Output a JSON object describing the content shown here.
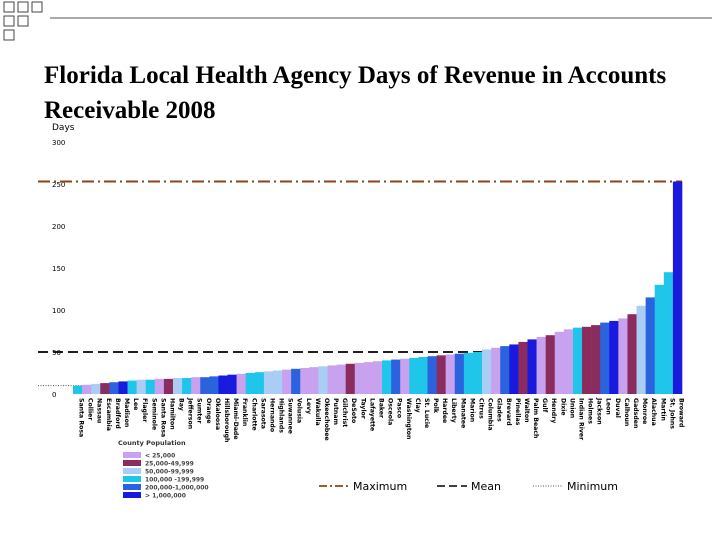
{
  "title": "Florida Local Health Agency Days of Revenue in Accounts Receivable 2008",
  "colors": {
    "lt25k": "#c8a2ef",
    "25k_50k": "#8b2c5e",
    "50k_100k": "#a9cdf5",
    "100k_200k": "#20c6ea",
    "200k_1m": "#2a63dd",
    "gt1m": "#1a1adf",
    "maximum": "#8b4513",
    "mean": "#000000",
    "minimum": "#555555"
  },
  "legend": {
    "title": "County Population",
    "items": [
      {
        "label": "< 25,000",
        "color_key": "lt25k"
      },
      {
        "label": "25,000-49,999",
        "color_key": "25k_50k"
      },
      {
        "label": "50,000-99,999",
        "color_key": "50k_100k"
      },
      {
        "label": "100,000 -199,999",
        "color_key": "100k_200k"
      },
      {
        "label": "200,000-1,000,000",
        "color_key": "200k_1m"
      },
      {
        "label": "> 1,000,000",
        "color_key": "gt1m"
      }
    ],
    "lines": [
      {
        "label": "Maximum",
        "color_key": "maximum"
      },
      {
        "label": "Mean",
        "color_key": "mean"
      },
      {
        "label": "Minimum",
        "color_key": "minimum"
      }
    ]
  },
  "chart_data": {
    "type": "bar",
    "title": "Florida Local Health Agency Days of Revenue in Accounts Receivable 2008",
    "ylabel": "Days",
    "ylim": [
      0,
      300
    ],
    "yticks": [
      0,
      50,
      100,
      150,
      200,
      250,
      300
    ],
    "grid": false,
    "reference_lines": {
      "maximum": 253,
      "mean": 50,
      "minimum": 10
    },
    "categories": [
      "Santa Rosa",
      "Collier",
      "Nassau",
      "Escambia",
      "Bradford",
      "Madison",
      "Lee",
      "Flagler",
      "Seminole",
      "Santa Rosa",
      "Hamilton",
      "Bay",
      "Jefferson",
      "Sumter",
      "Orange",
      "Okaloosa",
      "Hillsborough",
      "Miami-Dade",
      "Franklin",
      "Charlotte",
      "Sarasota",
      "Hernando",
      "Highlands",
      "Suwannee",
      "Volusia",
      "Levy",
      "Wakulla",
      "Okeechobee",
      "Putnam",
      "Gilchrist",
      "DeSoto",
      "Taylor",
      "Lafayette",
      "Baker",
      "Osceola",
      "Pasco",
      "Washington",
      "Clay",
      "St. Lucie",
      "Polk",
      "Hardee",
      "Liberty",
      "Manatee",
      "Marion",
      "Citrus",
      "Columbia",
      "Glades",
      "Brevard",
      "Pinellas",
      "Walton",
      "Palm Beach",
      "Gulf",
      "Hendry",
      "Dixie",
      "Union",
      "Indian River",
      "Holmes",
      "Jackson",
      "Leon",
      "Duval",
      "Calhoun",
      "Gadsden",
      "Monroe",
      "Alachua",
      "Martin",
      "St. Johns",
      "Broward"
    ],
    "series": [
      {
        "values": [
          10,
          11,
          12,
          13,
          14,
          15,
          16,
          17,
          17,
          18,
          18,
          19,
          19,
          20,
          20,
          21,
          22,
          23,
          24,
          25,
          26,
          27,
          28,
          29,
          30,
          31,
          32,
          33,
          34,
          35,
          36,
          37,
          38,
          39,
          40,
          41,
          42,
          43,
          44,
          45,
          46,
          47,
          48,
          49,
          50,
          53,
          55,
          57,
          59,
          62,
          65,
          68,
          70,
          74,
          77,
          79,
          80,
          82,
          85,
          87,
          90,
          95,
          105,
          115,
          130,
          145,
          253
        ],
        "categories_population": [
          "100k_200k",
          "lt25k",
          "50k_100k",
          "25k_50k",
          "200k_1m",
          "gt1m",
          "100k_200k",
          "50k_100k",
          "100k_200k",
          "lt25k",
          "25k_50k",
          "50k_100k",
          "100k_200k",
          "lt25k",
          "200k_1m",
          "200k_1m",
          "gt1m",
          "gt1m",
          "lt25k",
          "100k_200k",
          "100k_200k",
          "50k_100k",
          "50k_100k",
          "lt25k",
          "200k_1m",
          "lt25k",
          "lt25k",
          "50k_100k",
          "lt25k",
          "lt25k",
          "25k_50k",
          "lt25k",
          "lt25k",
          "lt25k",
          "100k_200k",
          "200k_1m",
          "lt25k",
          "100k_200k",
          "100k_200k",
          "200k_1m",
          "25k_50k",
          "lt25k",
          "200k_1m",
          "100k_200k",
          "100k_200k",
          "50k_100k",
          "lt25k",
          "200k_1m",
          "gt1m",
          "25k_50k",
          "gt1m",
          "lt25k",
          "25k_50k",
          "lt25k",
          "lt25k",
          "100k_200k",
          "25k_50k",
          "25k_50k",
          "200k_1m",
          "gt1m",
          "lt25k",
          "25k_50k",
          "50k_100k",
          "200k_1m",
          "100k_200k",
          "100k_200k",
          "gt1m"
        ]
      }
    ]
  }
}
